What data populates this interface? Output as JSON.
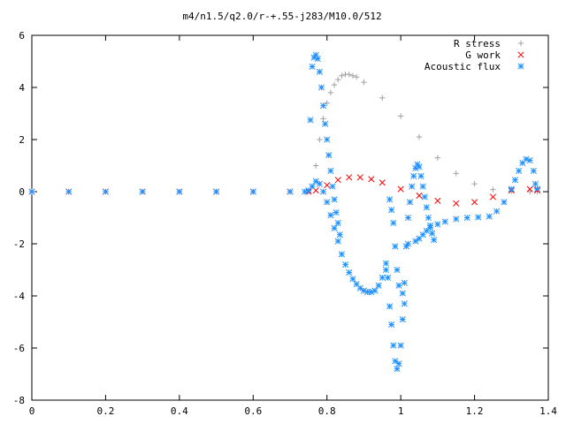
{
  "chart_data": {
    "type": "scatter",
    "title": "m4/n1.5/q2.0/r-+.55-j283/M10.0/512",
    "xlabel": "",
    "ylabel": "",
    "xlim": [
      0,
      1.4
    ],
    "ylim": [
      -8,
      6
    ],
    "x_ticks": [
      0,
      0.2,
      0.4,
      0.6,
      0.8,
      1,
      1.2,
      1.4
    ],
    "x_tick_labels": [
      "0",
      "0.2",
      "0.4",
      "0.6",
      "0.8",
      "1",
      "1.2",
      "1.4"
    ],
    "y_ticks": [
      6,
      4,
      2,
      0,
      -2,
      -4,
      -6,
      -8
    ],
    "y_tick_labels": [
      "6",
      "4",
      "2",
      "0",
      "-2",
      "-4",
      "-6",
      "-8"
    ],
    "grid": false,
    "legend_position": "top-right",
    "series": [
      {
        "name": "R stress",
        "marker": "+",
        "color": "#a0a0a0",
        "points": [
          [
            0,
            0
          ],
          [
            0.1,
            0
          ],
          [
            0.2,
            0
          ],
          [
            0.3,
            0
          ],
          [
            0.4,
            0
          ],
          [
            0.5,
            0
          ],
          [
            0.6,
            0
          ],
          [
            0.7,
            0
          ],
          [
            0.75,
            0
          ],
          [
            0.76,
            0.2
          ],
          [
            0.77,
            1.0
          ],
          [
            0.78,
            2.0
          ],
          [
            0.79,
            2.8
          ],
          [
            0.8,
            3.4
          ],
          [
            0.81,
            3.8
          ],
          [
            0.82,
            4.1
          ],
          [
            0.83,
            4.3
          ],
          [
            0.84,
            4.45
          ],
          [
            0.85,
            4.5
          ],
          [
            0.86,
            4.5
          ],
          [
            0.87,
            4.45
          ],
          [
            0.88,
            4.4
          ],
          [
            0.9,
            4.2
          ],
          [
            0.95,
            3.6
          ],
          [
            1.0,
            2.9
          ],
          [
            1.05,
            2.1
          ],
          [
            1.1,
            1.3
          ],
          [
            1.15,
            0.7
          ],
          [
            1.2,
            0.3
          ],
          [
            1.25,
            0.08
          ],
          [
            1.3,
            0.02
          ],
          [
            1.35,
            0
          ],
          [
            1.37,
            0
          ]
        ]
      },
      {
        "name": "G work",
        "marker": "x",
        "color": "#ff0000",
        "points": [
          [
            0,
            0
          ],
          [
            0.1,
            0
          ],
          [
            0.2,
            0
          ],
          [
            0.3,
            0
          ],
          [
            0.4,
            0
          ],
          [
            0.5,
            0
          ],
          [
            0.6,
            0
          ],
          [
            0.7,
            0
          ],
          [
            0.75,
            0
          ],
          [
            0.77,
            0.05
          ],
          [
            0.8,
            0.25
          ],
          [
            0.83,
            0.45
          ],
          [
            0.86,
            0.55
          ],
          [
            0.89,
            0.55
          ],
          [
            0.92,
            0.48
          ],
          [
            0.95,
            0.35
          ],
          [
            1.0,
            0.1
          ],
          [
            1.05,
            -0.15
          ],
          [
            1.1,
            -0.35
          ],
          [
            1.15,
            -0.45
          ],
          [
            1.2,
            -0.4
          ],
          [
            1.25,
            -0.2
          ],
          [
            1.3,
            0.05
          ],
          [
            1.35,
            0.1
          ],
          [
            1.37,
            0.05
          ]
        ]
      },
      {
        "name": "Acoustic flux",
        "marker": "*",
        "color": "#1e90ff",
        "points": [
          [
            0,
            0
          ],
          [
            0.1,
            0
          ],
          [
            0.2,
            0
          ],
          [
            0.3,
            0
          ],
          [
            0.4,
            0
          ],
          [
            0.5,
            0
          ],
          [
            0.6,
            0
          ],
          [
            0.7,
            0
          ],
          [
            0.74,
            0
          ],
          [
            0.75,
            0.05
          ],
          [
            0.76,
            0.2
          ],
          [
            0.77,
            0.4
          ],
          [
            0.78,
            0.3
          ],
          [
            0.79,
            0.0
          ],
          [
            0.8,
            -0.4
          ],
          [
            0.81,
            -0.9
          ],
          [
            0.82,
            -1.4
          ],
          [
            0.83,
            -1.9
          ],
          [
            0.84,
            -2.4
          ],
          [
            0.85,
            -2.8
          ],
          [
            0.86,
            -3.1
          ],
          [
            0.87,
            -3.35
          ],
          [
            0.88,
            -3.55
          ],
          [
            0.89,
            -3.7
          ],
          [
            0.9,
            -3.8
          ],
          [
            0.91,
            -3.85
          ],
          [
            0.92,
            -3.85
          ],
          [
            0.93,
            -3.8
          ],
          [
            0.94,
            -3.6
          ],
          [
            0.95,
            -3.3
          ],
          [
            0.96,
            -3.0
          ],
          [
            1.02,
            -2.0
          ],
          [
            1.04,
            -1.9
          ],
          [
            1.05,
            -1.8
          ],
          [
            1.06,
            -1.65
          ],
          [
            1.07,
            -1.5
          ],
          [
            1.08,
            -1.38
          ],
          [
            1.1,
            -1.25
          ],
          [
            1.12,
            -1.15
          ],
          [
            1.15,
            -1.05
          ],
          [
            1.18,
            -1.0
          ],
          [
            1.21,
            -0.98
          ],
          [
            1.24,
            -0.95
          ],
          [
            1.26,
            -0.75
          ],
          [
            1.28,
            -0.4
          ],
          [
            1.3,
            0.1
          ],
          [
            1.31,
            0.45
          ],
          [
            1.32,
            0.8
          ],
          [
            1.33,
            1.1
          ],
          [
            1.34,
            1.25
          ],
          [
            1.35,
            1.2
          ],
          [
            1.36,
            0.8
          ],
          [
            1.365,
            0.3
          ],
          [
            1.37,
            0.1
          ],
          [
            0.755,
            2.75
          ],
          [
            0.76,
            4.8
          ],
          [
            0.765,
            5.15
          ],
          [
            0.77,
            5.25
          ],
          [
            0.775,
            5.1
          ],
          [
            0.78,
            4.6
          ],
          [
            0.785,
            4.0
          ],
          [
            0.79,
            3.3
          ],
          [
            0.795,
            2.6
          ],
          [
            0.8,
            2.0
          ],
          [
            0.805,
            1.4
          ],
          [
            0.81,
            0.8
          ],
          [
            0.815,
            0.2
          ],
          [
            0.82,
            -0.3
          ],
          [
            0.825,
            -0.8
          ],
          [
            0.83,
            -1.2
          ],
          [
            0.835,
            -1.65
          ],
          [
            0.96,
            -2.75
          ],
          [
            0.965,
            -3.3
          ],
          [
            0.97,
            -4.4
          ],
          [
            0.975,
            -5.1
          ],
          [
            0.98,
            -5.9
          ],
          [
            0.985,
            -6.5
          ],
          [
            0.99,
            -6.8
          ],
          [
            0.995,
            -6.6
          ],
          [
            1.0,
            -5.9
          ],
          [
            1.005,
            -4.9
          ],
          [
            1.01,
            -3.5
          ],
          [
            1.015,
            -2.1
          ],
          [
            1.02,
            -1.0
          ],
          [
            1.025,
            -0.4
          ],
          [
            1.03,
            0.2
          ],
          [
            1.035,
            0.6
          ],
          [
            1.04,
            0.9
          ],
          [
            1.045,
            1.05
          ],
          [
            1.05,
            0.95
          ],
          [
            1.055,
            0.6
          ],
          [
            1.06,
            0.2
          ],
          [
            1.065,
            -0.2
          ],
          [
            1.07,
            -0.6
          ],
          [
            1.075,
            -1.0
          ],
          [
            1.08,
            -1.3
          ],
          [
            1.085,
            -1.6
          ],
          [
            1.09,
            -1.85
          ],
          [
            0.97,
            -0.3
          ],
          [
            0.975,
            -0.7
          ],
          [
            0.98,
            -1.2
          ],
          [
            0.985,
            -2.1
          ],
          [
            0.99,
            -3.0
          ],
          [
            0.995,
            -3.6
          ],
          [
            1.005,
            -3.9
          ],
          [
            1.01,
            -4.3
          ]
        ]
      }
    ]
  }
}
